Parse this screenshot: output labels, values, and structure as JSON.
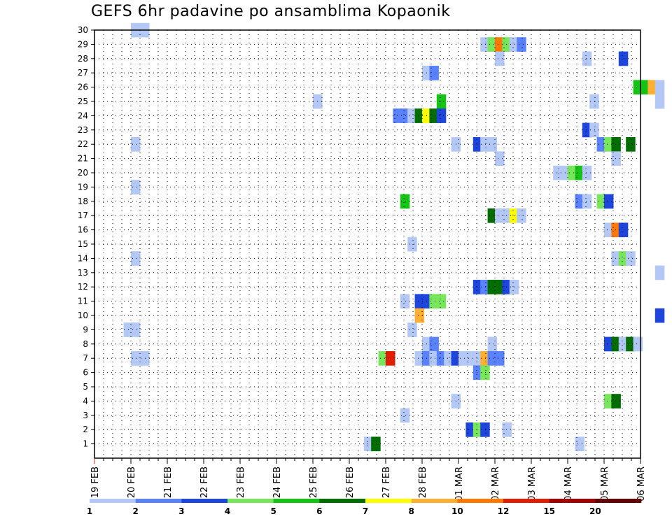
{
  "chart_data": {
    "type": "heatmap",
    "title": "GEFS 6hr padavine po ansamblima Kopaonik",
    "x_tick_labels": [
      "19 FEB",
      "20 FEB",
      "21 FEB",
      "22 FEB",
      "23 FEB",
      "24 FEB",
      "25 FEB",
      "26 FEB",
      "27 FEB",
      "28 FEB",
      "01 MAR",
      "02 MAR",
      "03 MAR",
      "04 MAR",
      "05 MAR",
      "06 MAR"
    ],
    "x_range_days": [
      0,
      15
    ],
    "y_range": [
      0,
      30
    ],
    "y_ticks": [
      1,
      2,
      3,
      4,
      5,
      6,
      7,
      8,
      9,
      10,
      11,
      12,
      13,
      14,
      15,
      16,
      17,
      18,
      19,
      20,
      21,
      22,
      23,
      24,
      25,
      26,
      27,
      28,
      29,
      30
    ],
    "grid": true,
    "levels": [
      "1",
      "2",
      "3",
      "4",
      "5",
      "6",
      "7",
      "8",
      "10",
      "12",
      "15",
      "20"
    ],
    "colors": [
      "#b4c8f5",
      "#5a82ff",
      "#1e46dc",
      "#78e65a",
      "#14c314",
      "#006e00",
      "#ffff00",
      "#ffaf32",
      "#ff7800",
      "#e11e00",
      "#a00000",
      "#640000"
    ],
    "cells": [
      [
        1,
        30,
        0
      ],
      [
        1.25,
        30,
        0
      ],
      [
        10.6,
        29,
        0
      ],
      [
        10.8,
        29,
        3
      ],
      [
        11,
        29,
        8
      ],
      [
        11.2,
        29,
        3
      ],
      [
        11.4,
        29,
        0
      ],
      [
        11.6,
        29,
        1
      ],
      [
        11,
        28,
        0
      ],
      [
        13.4,
        28,
        0
      ],
      [
        14.4,
        28,
        2
      ],
      [
        9,
        27,
        0
      ],
      [
        9.2,
        27,
        1
      ],
      [
        14.8,
        26,
        4
      ],
      [
        15,
        26,
        4
      ],
      [
        15.2,
        26,
        7
      ],
      [
        15.4,
        26,
        0
      ],
      [
        6,
        25,
        0
      ],
      [
        9.4,
        25,
        4
      ],
      [
        13.6,
        25,
        0
      ],
      [
        15.4,
        25,
        0
      ],
      [
        8.2,
        24,
        1
      ],
      [
        8.4,
        24,
        1
      ],
      [
        8.6,
        24,
        0
      ],
      [
        8.8,
        24,
        5
      ],
      [
        9,
        24,
        6
      ],
      [
        9.2,
        24,
        5
      ],
      [
        9.4,
        24,
        2
      ],
      [
        13.4,
        23,
        2
      ],
      [
        13.6,
        23,
        0
      ],
      [
        1,
        22,
        0
      ],
      [
        9.8,
        22,
        0
      ],
      [
        10.4,
        22,
        2
      ],
      [
        10.6,
        22,
        0
      ],
      [
        10.8,
        22,
        0
      ],
      [
        13.8,
        22,
        1
      ],
      [
        14,
        22,
        3
      ],
      [
        14.2,
        22,
        5
      ],
      [
        14.6,
        22,
        5
      ],
      [
        11,
        21,
        0
      ],
      [
        14.2,
        21,
        0
      ],
      [
        12.6,
        20,
        0
      ],
      [
        12.8,
        20,
        0
      ],
      [
        13,
        20,
        3
      ],
      [
        13.2,
        20,
        4
      ],
      [
        13.4,
        20,
        0
      ],
      [
        1,
        19,
        0
      ],
      [
        8.4,
        18,
        4
      ],
      [
        13.2,
        18,
        1
      ],
      [
        13.4,
        18,
        0
      ],
      [
        13.8,
        18,
        3
      ],
      [
        14,
        18,
        2
      ],
      [
        10.8,
        17,
        5
      ],
      [
        11,
        17,
        0
      ],
      [
        11.2,
        17,
        0
      ],
      [
        11.4,
        17,
        6
      ],
      [
        11.6,
        17,
        0
      ],
      [
        14,
        16,
        0
      ],
      [
        14.2,
        16,
        8
      ],
      [
        14.4,
        16,
        2
      ],
      [
        8.6,
        15,
        0
      ],
      [
        1,
        14,
        0
      ],
      [
        14.2,
        14,
        0
      ],
      [
        14.4,
        14,
        3
      ],
      [
        14.6,
        14,
        0
      ],
      [
        15.4,
        13,
        0
      ],
      [
        10.4,
        12,
        2
      ],
      [
        10.6,
        12,
        1
      ],
      [
        10.8,
        12,
        5
      ],
      [
        11,
        12,
        5
      ],
      [
        11.2,
        12,
        2
      ],
      [
        11.4,
        12,
        0
      ],
      [
        8.4,
        11,
        0
      ],
      [
        8.8,
        11,
        2
      ],
      [
        9,
        11,
        2
      ],
      [
        9.2,
        11,
        3
      ],
      [
        9.4,
        11,
        3
      ],
      [
        8.8,
        10,
        7
      ],
      [
        15.4,
        10,
        2
      ],
      [
        0.8,
        9,
        0
      ],
      [
        1,
        9,
        0
      ],
      [
        8.6,
        9,
        0
      ],
      [
        9,
        8,
        0
      ],
      [
        9.2,
        8,
        1
      ],
      [
        10.8,
        8,
        0
      ],
      [
        14,
        8,
        2
      ],
      [
        14.2,
        8,
        5
      ],
      [
        14.4,
        8,
        0
      ],
      [
        14.6,
        8,
        5
      ],
      [
        14.8,
        8,
        0
      ],
      [
        1,
        7,
        0
      ],
      [
        1.25,
        7,
        0
      ],
      [
        7.8,
        7,
        3
      ],
      [
        8,
        7,
        9
      ],
      [
        8.8,
        7,
        0
      ],
      [
        9,
        7,
        1
      ],
      [
        9.2,
        7,
        0
      ],
      [
        9.4,
        7,
        1
      ],
      [
        9.6,
        7,
        0
      ],
      [
        9.8,
        7,
        2
      ],
      [
        10,
        7,
        0
      ],
      [
        10.2,
        7,
        0
      ],
      [
        10.4,
        7,
        0
      ],
      [
        10.6,
        7,
        7
      ],
      [
        10.8,
        7,
        1
      ],
      [
        11,
        7,
        1
      ],
      [
        10.4,
        6,
        1
      ],
      [
        10.6,
        6,
        3
      ],
      [
        9.8,
        4,
        0
      ],
      [
        14,
        4,
        3
      ],
      [
        14.2,
        4,
        5
      ],
      [
        8.4,
        3,
        0
      ],
      [
        10.2,
        2,
        2
      ],
      [
        10.4,
        2,
        3
      ],
      [
        10.6,
        2,
        2
      ],
      [
        11.2,
        2,
        0
      ],
      [
        7.4,
        1,
        0
      ],
      [
        7.6,
        1,
        5
      ],
      [
        13.2,
        1,
        0
      ]
    ]
  }
}
